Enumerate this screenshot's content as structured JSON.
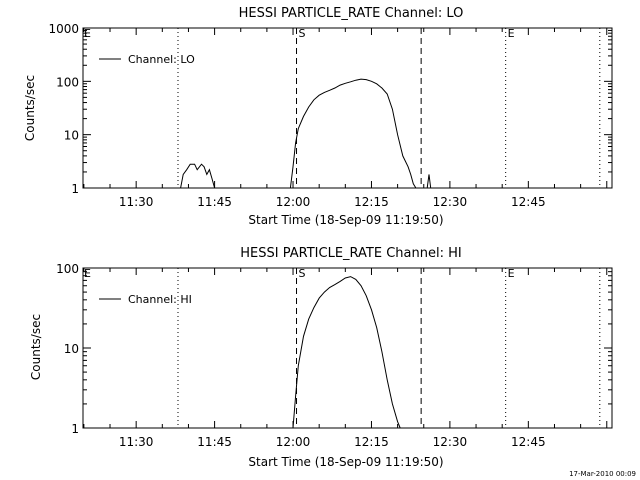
{
  "chart_data": [
    {
      "type": "line",
      "title": "HESSI PARTICLE_RATE Channel: LO",
      "xlabel": "Start Time (18-Sep-09 11:19:50)",
      "ylabel": "Counts/sec",
      "y_scale": "log",
      "xlim": [
        "11:19:50",
        "13:01:00"
      ],
      "ylim": [
        1,
        1000
      ],
      "x_ticks": [
        "11:30",
        "11:45",
        "12:00",
        "12:15",
        "12:30",
        "12:45"
      ],
      "y_ticks": [
        "1",
        "10",
        "100",
        "1000"
      ],
      "grid": false,
      "legend": {
        "position": "top-left",
        "entries": [
          "Channel: LO"
        ]
      },
      "series": [
        {
          "name": "Channel: LO",
          "x": [
            "11:38:30",
            "11:39:00",
            "11:39:40",
            "11:40:20",
            "11:41:10",
            "11:41:40",
            "11:42:30",
            "11:43:00",
            "11:43:30",
            "11:44:00",
            "11:44:30",
            "11:45:00",
            "11:59:30",
            "12:00:00",
            "12:00:30",
            "12:01:00",
            "12:02:00",
            "12:03:00",
            "12:04:00",
            "12:05:00",
            "12:06:00",
            "12:07:00",
            "12:08:00",
            "12:09:00",
            "12:10:00",
            "12:11:00",
            "12:12:00",
            "12:13:00",
            "12:14:00",
            "12:15:00",
            "12:16:00",
            "12:17:00",
            "12:18:00",
            "12:19:00",
            "12:20:00",
            "12:21:00",
            "12:22:00",
            "12:22:30",
            "12:23:00",
            "12:23:30",
            "12:25:40",
            "12:26:00",
            "12:26:20"
          ],
          "values": [
            1,
            1.8,
            2.2,
            2.8,
            2.8,
            2.2,
            2.8,
            2.5,
            1.8,
            2.2,
            1.5,
            1,
            1,
            2.5,
            7,
            13,
            22,
            33,
            45,
            55,
            62,
            68,
            75,
            85,
            92,
            98,
            105,
            110,
            108,
            100,
            90,
            75,
            58,
            30,
            10,
            4,
            2.5,
            1.8,
            1.2,
            1,
            1,
            1.8,
            1
          ]
        }
      ],
      "markers": [
        {
          "label": "S",
          "time": "12:00:40",
          "style": "dashed"
        },
        {
          "label": "",
          "time": "12:24:30",
          "style": "dashed"
        },
        {
          "label": "E",
          "time": "12:40:40",
          "style": "dotted"
        },
        {
          "label": "",
          "time": "11:38:00",
          "style": "dotted"
        },
        {
          "label": "",
          "time": "12:58:40",
          "style": "dotted"
        }
      ],
      "edge_markers": [
        "E"
      ]
    },
    {
      "type": "line",
      "title": "HESSI PARTICLE_RATE Channel: HI",
      "xlabel": "Start Time (18-Sep-09 11:19:50)",
      "ylabel": "Counts/sec",
      "y_scale": "log",
      "xlim": [
        "11:19:50",
        "13:01:00"
      ],
      "ylim": [
        1,
        100
      ],
      "x_ticks": [
        "11:30",
        "11:45",
        "12:00",
        "12:15",
        "12:30",
        "12:45"
      ],
      "y_ticks": [
        "1",
        "10",
        "100"
      ],
      "grid": false,
      "legend": {
        "position": "top-left",
        "entries": [
          "Channel: HI"
        ]
      },
      "series": [
        {
          "name": "Channel: HI",
          "x": [
            "12:00:00",
            "12:00:30",
            "12:01:00",
            "12:02:00",
            "12:03:00",
            "12:04:00",
            "12:05:00",
            "12:06:00",
            "12:07:00",
            "12:08:00",
            "12:09:00",
            "12:10:00",
            "12:11:00",
            "12:12:00",
            "12:13:00",
            "12:14:00",
            "12:15:00",
            "12:16:00",
            "12:17:00",
            "12:18:00",
            "12:19:00",
            "12:20:00",
            "12:20:30"
          ],
          "values": [
            1,
            2.5,
            6,
            14,
            23,
            32,
            42,
            50,
            57,
            62,
            68,
            75,
            78,
            72,
            60,
            45,
            30,
            18,
            9,
            4,
            2,
            1.2,
            1
          ]
        }
      ],
      "markers": [
        {
          "label": "S",
          "time": "12:00:40",
          "style": "dashed"
        },
        {
          "label": "",
          "time": "12:24:30",
          "style": "dashed"
        },
        {
          "label": "E",
          "time": "12:40:40",
          "style": "dotted"
        },
        {
          "label": "",
          "time": "11:38:00",
          "style": "dotted"
        },
        {
          "label": "",
          "time": "12:58:40",
          "style": "dotted"
        }
      ],
      "edge_markers": [
        "E"
      ]
    }
  ],
  "footer": {
    "stamp": "17-Mar-2010 00:09"
  }
}
